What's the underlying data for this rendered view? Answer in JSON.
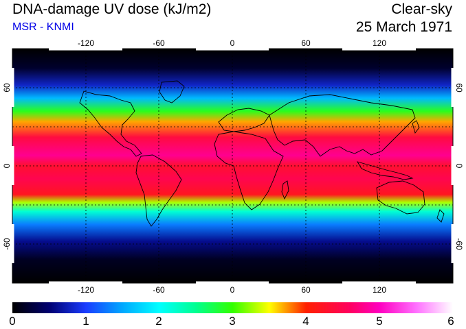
{
  "header": {
    "title": "DNA-damage UV dose (kJ/m2)",
    "source": "MSR - KNMI",
    "condition": "Clear-sky",
    "date": "25 March 1971"
  },
  "map": {
    "projection": "equirectangular",
    "lon_range": [
      -180,
      180
    ],
    "lat_range": [
      -90,
      90
    ],
    "lon_ticks": [
      "-120",
      "-60",
      "0",
      "60",
      "120"
    ],
    "lat_ticks": [
      "60",
      "0",
      "-60"
    ],
    "gridlines": "dotted",
    "coastlines": true,
    "band_profile": [
      {
        "lat": 90,
        "dose": 0.0
      },
      {
        "lat": 75,
        "dose": 0.2
      },
      {
        "lat": 62,
        "dose": 0.8
      },
      {
        "lat": 52,
        "dose": 1.6
      },
      {
        "lat": 42,
        "dose": 2.9
      },
      {
        "lat": 34,
        "dose": 3.7
      },
      {
        "lat": 22,
        "dose": 4.4
      },
      {
        "lat": 8,
        "dose": 4.8
      },
      {
        "lat": 0,
        "dose": 4.3
      },
      {
        "lat": -10,
        "dose": 4.5
      },
      {
        "lat": -22,
        "dose": 4.2
      },
      {
        "lat": -28,
        "dose": 3.3
      },
      {
        "lat": -35,
        "dose": 2.2
      },
      {
        "lat": -45,
        "dose": 1.3
      },
      {
        "lat": -58,
        "dose": 0.6
      },
      {
        "lat": -72,
        "dose": 0.15
      },
      {
        "lat": -90,
        "dose": 0.0
      }
    ]
  },
  "colorbar": {
    "min": 0,
    "max": 6,
    "labels": [
      "0",
      "1",
      "2",
      "3",
      "4",
      "5",
      "6"
    ],
    "stops": [
      {
        "value": 0,
        "color": "#000000"
      },
      {
        "value": 0.5,
        "color": "#000070"
      },
      {
        "value": 1,
        "color": "#1a3cff"
      },
      {
        "value": 1.5,
        "color": "#00a8ff"
      },
      {
        "value": 2,
        "color": "#00ffff"
      },
      {
        "value": 2.5,
        "color": "#00ff90"
      },
      {
        "value": 3,
        "color": "#33ff00"
      },
      {
        "value": 3.5,
        "color": "#ffff00"
      },
      {
        "value": 4,
        "color": "#ff2000"
      },
      {
        "value": 4.6,
        "color": "#ff0060"
      },
      {
        "value": 5,
        "color": "#ff00c0"
      },
      {
        "value": 5.5,
        "color": "#ff70ff"
      },
      {
        "value": 6,
        "color": "#ffffff"
      }
    ]
  }
}
